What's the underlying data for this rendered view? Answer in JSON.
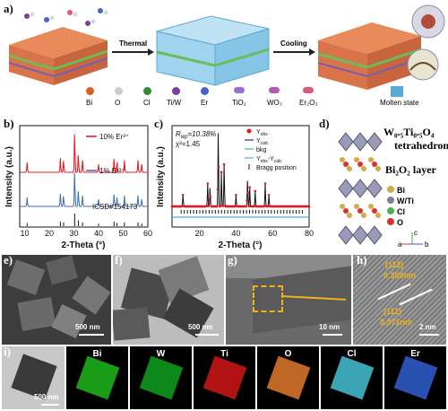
{
  "panels": {
    "a": "a)",
    "b": "b)",
    "c": "c)",
    "d": "d)",
    "e": "e)",
    "f": "f)",
    "g": "g)",
    "h": "h)",
    "i": "i)"
  },
  "synthesis": {
    "arrow1": "Thermal",
    "arrow2": "Cooling",
    "legend": [
      "Bi",
      "O",
      "Cl",
      "Ti/W",
      "Er",
      "TiO₂",
      "WO₃",
      "Er₂O₃",
      "Molten state"
    ],
    "colors": {
      "Bi": "#d6622a",
      "O": "#d9d9d9",
      "Cl": "#2e8b2e",
      "TiW": "#7b3fa0",
      "Er": "#4a62c9"
    }
  },
  "xrd": {
    "series": [
      {
        "name": "10% Er³⁺",
        "color": "#e8141c"
      },
      {
        "name": "1% Er³⁺",
        "color": "#3a6fb0"
      },
      {
        "name": "ICSD#154173",
        "color": "#111111"
      }
    ],
    "ylabel": "Intensity (a.u.)",
    "xlabel": "2-Theta (°)",
    "xticks": [
      "10",
      "20",
      "30",
      "40",
      "50",
      "60"
    ]
  },
  "refine": {
    "rwp": "R",
    "rwp_sub": "wp",
    "rwp_val": "=10.38%",
    "chi": "χ²=1.45",
    "legend": [
      "Y",
      "Y",
      "bkg",
      "Y",
      "Bragg position"
    ],
    "legend_sub": [
      "obs",
      "calc",
      "",
      "obs",
      ""
    ],
    "legend_tail": [
      "",
      "",
      "",
      "-Y",
      ""
    ],
    "legend_tail_sub": [
      "",
      "",
      "",
      "calc",
      ""
    ],
    "ylabel": "Intensity (a.u.)",
    "xlabel": "2-Theta (°)",
    "xticks": [
      "20",
      "40",
      "60",
      "80"
    ]
  },
  "structure": {
    "title1": "W₀.₅Ti₀.₅O₄",
    "title2": "tetrahedron",
    "layer": "Bi₂O₂ layer",
    "legend": [
      "Bi",
      "W/Ti",
      "Cl",
      "O"
    ],
    "axes": [
      "a",
      "b",
      "c"
    ]
  },
  "em": {
    "e_scale": "500 nm",
    "f_scale": "500 nm",
    "g_scale": "10 nm",
    "h_scale": "2 nm",
    "h_plane1": "(112)",
    "h_d1": "0.389nm",
    "h_plane2": "(111)",
    "h_d2": "0.371nm",
    "i_scale": "500 nm",
    "maps": [
      {
        "label": "Bi",
        "color": "#1db81d"
      },
      {
        "label": "W",
        "color": "#0fa01f"
      },
      {
        "label": "Ti",
        "color": "#d11818"
      },
      {
        "label": "O",
        "color": "#e07a2c"
      },
      {
        "label": "Cl",
        "color": "#45c2d6"
      },
      {
        "label": "Er",
        "color": "#2f5fd0"
      }
    ]
  }
}
